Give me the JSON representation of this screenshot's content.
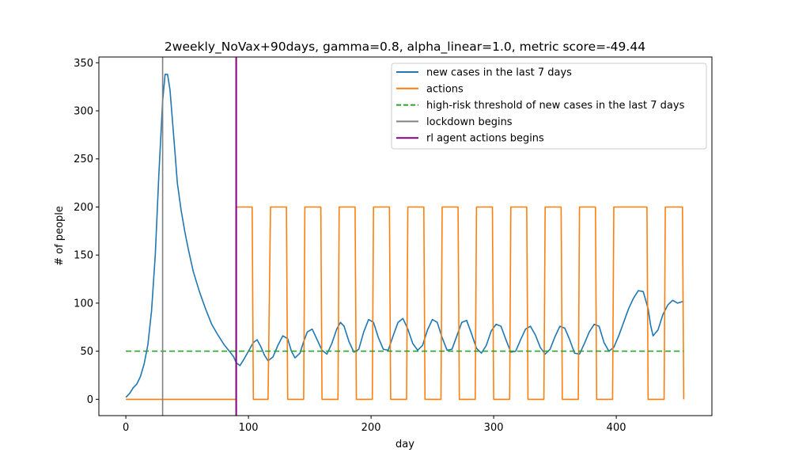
{
  "chart_data": {
    "type": "line",
    "title": "2weekly_NoVax+90days, gamma=0.8, alpha_linear=1.0, metric score=-49.44",
    "xlabel": "day",
    "ylabel": "# of people",
    "xlim": [
      -22,
      478
    ],
    "ylim": [
      -17,
      356
    ],
    "x_ticks": [
      0,
      100,
      200,
      300,
      400
    ],
    "y_ticks": [
      0,
      50,
      100,
      150,
      200,
      250,
      300,
      350
    ],
    "legend_position": "top-right",
    "grid": false,
    "series": [
      {
        "name": "new cases in the last 7 days",
        "color": "#1f77b4",
        "style": "solid",
        "x": [
          0,
          3,
          6,
          9,
          12,
          15,
          18,
          21,
          24,
          27,
          30,
          32,
          34,
          36,
          38,
          40,
          42,
          45,
          48,
          51,
          55,
          60,
          65,
          70,
          75,
          80,
          85,
          88,
          90,
          93,
          96,
          100,
          104,
          107,
          110,
          113,
          116,
          120,
          124,
          128,
          132,
          135,
          138,
          142,
          145,
          148,
          152,
          156,
          160,
          164,
          168,
          172,
          175,
          178,
          182,
          186,
          190,
          194,
          198,
          202,
          206,
          210,
          214,
          218,
          222,
          226,
          230,
          234,
          238,
          242,
          246,
          250,
          254,
          258,
          262,
          266,
          270,
          274,
          278,
          282,
          286,
          290,
          294,
          298,
          302,
          306,
          310,
          314,
          318,
          322,
          326,
          330,
          334,
          338,
          342,
          346,
          350,
          354,
          358,
          362,
          366,
          370,
          374,
          378,
          382,
          386,
          390,
          394,
          398,
          402,
          406,
          410,
          414,
          418,
          422,
          426,
          428,
          430,
          434,
          438,
          442,
          446,
          450,
          455
        ],
        "y": [
          2,
          6,
          12,
          16,
          24,
          37,
          57,
          92,
          150,
          235,
          310,
          338,
          338,
          322,
          290,
          258,
          225,
          197,
          175,
          156,
          133,
          112,
          94,
          78,
          67,
          57,
          49,
          44,
          38,
          35,
          41,
          50,
          59,
          62,
          55,
          46,
          40,
          44,
          56,
          66,
          63,
          50,
          43,
          48,
          60,
          70,
          73,
          62,
          51,
          47,
          58,
          73,
          80,
          76,
          60,
          49,
          52,
          70,
          83,
          80,
          64,
          52,
          51,
          66,
          80,
          84,
          73,
          58,
          51,
          56,
          72,
          83,
          80,
          64,
          51,
          52,
          66,
          80,
          82,
          68,
          53,
          48,
          56,
          71,
          78,
          76,
          62,
          49,
          50,
          62,
          73,
          76,
          67,
          54,
          47,
          52,
          65,
          76,
          74,
          62,
          48,
          47,
          58,
          70,
          78,
          76,
          59,
          50,
          54,
          66,
          80,
          94,
          105,
          113,
          112,
          94,
          77,
          66,
          72,
          88,
          98,
          103,
          100,
          102
        ]
      },
      {
        "name": "actions",
        "color": "#ff7f0e",
        "style": "step",
        "x": [
          0,
          90,
          90,
          103,
          104,
          116,
          118,
          131,
          132,
          145,
          146,
          159,
          160,
          173,
          174,
          187,
          188,
          201,
          202,
          215,
          216,
          229,
          230,
          243,
          244,
          257,
          258,
          271,
          272,
          285,
          286,
          299,
          300,
          313,
          314,
          327,
          328,
          341,
          342,
          355,
          356,
          369,
          370,
          383,
          384,
          397,
          398,
          425,
          426,
          439,
          440,
          454,
          455
        ],
        "y": [
          0,
          0,
          200,
          200,
          0,
          0,
          200,
          200,
          0,
          0,
          200,
          200,
          0,
          0,
          200,
          200,
          0,
          0,
          200,
          200,
          0,
          0,
          200,
          200,
          0,
          0,
          200,
          200,
          0,
          0,
          200,
          200,
          0,
          0,
          200,
          200,
          0,
          0,
          200,
          200,
          0,
          0,
          200,
          200,
          0,
          0,
          200,
          200,
          0,
          0,
          200,
          200,
          0
        ]
      },
      {
        "name": "high-risk threshold of new cases in the last 7 days",
        "color": "#2ca02c",
        "style": "dashed",
        "x": [
          0,
          455
        ],
        "y": [
          50,
          50
        ]
      }
    ],
    "vlines": [
      {
        "name": "lockdown begins",
        "x": 30,
        "color": "#808080"
      },
      {
        "name": "rl agent actions begins",
        "x": 90,
        "color": "#800080"
      }
    ]
  }
}
